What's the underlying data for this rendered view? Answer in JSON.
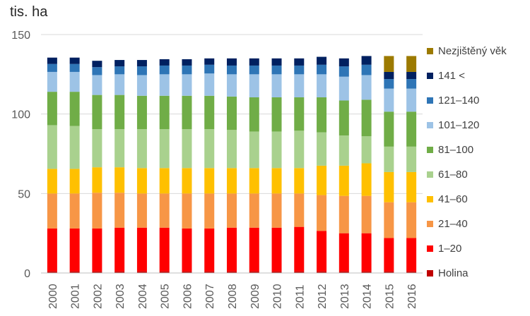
{
  "ylabel": "tis. ha",
  "chart_data": {
    "type": "bar",
    "stacked": true,
    "ylabel": "tis. ha",
    "ylim": [
      0,
      150
    ],
    "yticks": [
      0,
      50,
      100,
      150
    ],
    "grid": true,
    "legend_position": "right",
    "categories": [
      "2000",
      "2001",
      "2002",
      "2003",
      "2004",
      "2005",
      "2006",
      "2007",
      "2008",
      "2009",
      "2010",
      "2011",
      "2012",
      "2013",
      "2014",
      "2015",
      "2016"
    ],
    "series": [
      {
        "name": "Holina",
        "color": "#c00000",
        "values": [
          1,
          1,
          1,
          1,
          1,
          1,
          1,
          1,
          1,
          1,
          1,
          1,
          1,
          1,
          1,
          1,
          1
        ]
      },
      {
        "name": "1–20",
        "color": "#ff0000",
        "values": [
          27,
          27,
          27,
          27.5,
          27.5,
          27.5,
          27,
          27,
          27.5,
          27.5,
          27.5,
          28,
          25.5,
          24,
          24,
          21,
          21
        ]
      },
      {
        "name": "21–40",
        "color": "#f79646",
        "values": [
          22,
          22,
          22.5,
          22,
          21.5,
          21.5,
          22,
          22,
          21.5,
          21.5,
          21.5,
          21,
          22.5,
          23.5,
          23.5,
          22.5,
          22.5
        ]
      },
      {
        "name": "41–60",
        "color": "#ffc000",
        "values": [
          15.5,
          15.5,
          16,
          16,
          16,
          16,
          16,
          16,
          16,
          16,
          16,
          16,
          18.5,
          19,
          20.5,
          19,
          19
        ]
      },
      {
        "name": "61–80",
        "color": "#a9d18e",
        "values": [
          27.5,
          27,
          24,
          24,
          24.5,
          24.5,
          24.5,
          24.5,
          24,
          23,
          23,
          23.5,
          21,
          19,
          17,
          16,
          16
        ]
      },
      {
        "name": "81–100",
        "color": "#70ad47",
        "values": [
          21,
          21.5,
          21.5,
          21.5,
          21,
          21,
          21,
          21,
          21,
          21.5,
          21.5,
          21,
          22,
          22,
          23,
          22,
          22
        ]
      },
      {
        "name": "101–120",
        "color": "#9dc3e6",
        "values": [
          12.5,
          12.5,
          12.5,
          13,
          13,
          13.5,
          13.5,
          14,
          14,
          14.5,
          14.5,
          14.5,
          14.5,
          15,
          15.5,
          14.5,
          14.5
        ]
      },
      {
        "name": "121–140",
        "color": "#2e75b6",
        "values": [
          5,
          5,
          5,
          5,
          5.5,
          5.5,
          5.5,
          5.5,
          5.5,
          5.5,
          5.5,
          5.5,
          6,
          6.5,
          6.5,
          6,
          6
        ]
      },
      {
        "name": "141 <",
        "color": "#002060",
        "values": [
          4,
          4,
          4,
          4,
          4,
          4,
          4,
          4,
          4.5,
          4.5,
          4.5,
          4.5,
          5,
          5,
          5.5,
          4.5,
          4.5
        ]
      },
      {
        "name": "Nezjištěný věk",
        "color": "#9c7a00",
        "values": [
          0,
          0,
          0,
          0,
          0,
          0,
          0,
          0,
          0,
          0,
          0,
          0,
          0,
          0,
          0,
          10,
          10
        ]
      }
    ]
  }
}
